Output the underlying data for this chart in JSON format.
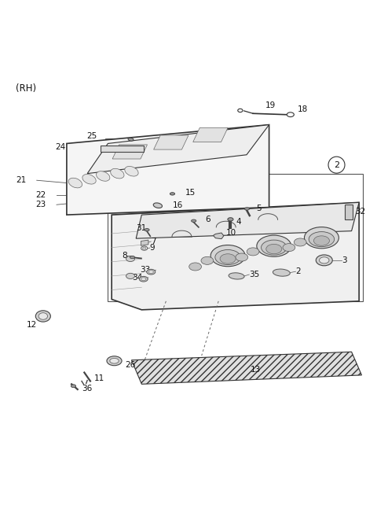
{
  "title": "(RH)",
  "background_color": "#ffffff",
  "parts": [
    {
      "id": "2",
      "label": "2"
    },
    {
      "id": "3",
      "label": "3"
    },
    {
      "id": "4",
      "label": "4"
    },
    {
      "id": "5",
      "label": "5"
    },
    {
      "id": "6",
      "label": "6"
    },
    {
      "id": "7",
      "label": "7"
    },
    {
      "id": "8",
      "label": "8"
    },
    {
      "id": "9",
      "label": "9"
    },
    {
      "id": "10",
      "label": "10"
    },
    {
      "id": "11",
      "label": "11"
    },
    {
      "id": "12",
      "label": "12"
    },
    {
      "id": "13",
      "label": "13"
    },
    {
      "id": "15",
      "label": "15"
    },
    {
      "id": "16",
      "label": "16"
    },
    {
      "id": "18",
      "label": "18"
    },
    {
      "id": "19",
      "label": "19"
    },
    {
      "id": "21",
      "label": "21"
    },
    {
      "id": "22",
      "label": "22"
    },
    {
      "id": "23",
      "label": "23"
    },
    {
      "id": "24",
      "label": "24"
    },
    {
      "id": "25",
      "label": "25"
    },
    {
      "id": "26",
      "label": "26"
    },
    {
      "id": "31",
      "label": "31"
    },
    {
      "id": "32",
      "label": "32"
    },
    {
      "id": "33",
      "label": "33"
    },
    {
      "id": "34",
      "label": "34"
    },
    {
      "id": "35",
      "label": "35"
    },
    {
      "id": "36",
      "label": "36"
    }
  ],
  "line_color": "#333333",
  "label_color": "#111111",
  "cover_face_color": "#f5f5f5",
  "cover_top_color": "#eeeeee",
  "head_color": "#f0f0f0",
  "head_top_color": "#e8e8e8",
  "gasket_color": "#e0e0e0",
  "ring_color": "#d0d0d0",
  "small_color": "#cccccc",
  "label_fontsize": 7.5,
  "title_fontsize": 8.5
}
